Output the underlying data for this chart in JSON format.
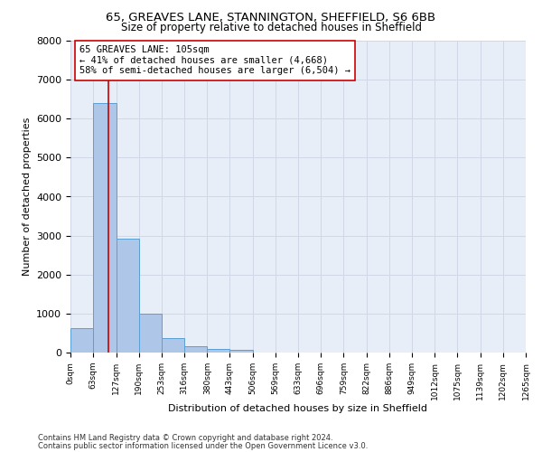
{
  "title_line1": "65, GREAVES LANE, STANNINGTON, SHEFFIELD, S6 6BB",
  "title_line2": "Size of property relative to detached houses in Sheffield",
  "xlabel": "Distribution of detached houses by size in Sheffield",
  "ylabel": "Number of detached properties",
  "bar_values": [
    620,
    6400,
    2920,
    1000,
    380,
    160,
    100,
    80,
    0,
    0,
    0,
    0,
    0,
    0,
    0,
    0,
    0,
    0,
    0,
    0
  ],
  "bin_edges": [
    0,
    63,
    127,
    190,
    253,
    316,
    380,
    443,
    506,
    569,
    633,
    696,
    759,
    822,
    886,
    949,
    1012,
    1075,
    1139,
    1202,
    1265
  ],
  "tick_labels": [
    "0sqm",
    "63sqm",
    "127sqm",
    "190sqm",
    "253sqm",
    "316sqm",
    "380sqm",
    "443sqm",
    "506sqm",
    "569sqm",
    "633sqm",
    "696sqm",
    "759sqm",
    "822sqm",
    "886sqm",
    "949sqm",
    "1012sqm",
    "1075sqm",
    "1139sqm",
    "1202sqm",
    "1265sqm"
  ],
  "bar_color": "#aec6e8",
  "bar_edge_color": "#5a9fd4",
  "property_size": 105,
  "property_line_color": "#cc0000",
  "annotation_text": "65 GREAVES LANE: 105sqm\n← 41% of detached houses are smaller (4,668)\n58% of semi-detached houses are larger (6,504) →",
  "annotation_box_color": "#ffffff",
  "annotation_box_edge_color": "#cc0000",
  "ylim": [
    0,
    8000
  ],
  "yticks": [
    0,
    1000,
    2000,
    3000,
    4000,
    5000,
    6000,
    7000,
    8000
  ],
  "grid_color": "#d0d8e8",
  "background_color": "#e8eef8",
  "footer_line1": "Contains HM Land Registry data © Crown copyright and database right 2024.",
  "footer_line2": "Contains public sector information licensed under the Open Government Licence v3.0.",
  "title_fontsize": 9.5,
  "subtitle_fontsize": 8.5,
  "tick_fontsize": 6.5,
  "ylabel_fontsize": 8,
  "xlabel_fontsize": 8,
  "annotation_fontsize": 7.5,
  "footer_fontsize": 6
}
